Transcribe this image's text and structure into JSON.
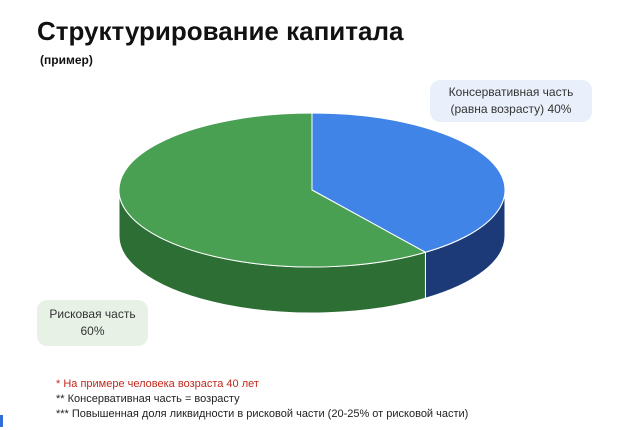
{
  "title": "Структурирование капитала",
  "subtitle": "(пример)",
  "chart_data": {
    "type": "pie",
    "style": "3d",
    "slices": [
      {
        "label": "Консервативная часть (равна возрасту)",
        "value": 40,
        "color": "#3f84e6",
        "side_color": "#1c3a78"
      },
      {
        "label": "Рисковая часть",
        "value": 60,
        "color": "#4aa052",
        "side_color": "#2c6e34"
      }
    ]
  },
  "callouts": {
    "conservative": [
      "Консервативная часть",
      "(равна возрасту) 40%"
    ],
    "risky": [
      "Рисковая часть",
      "60%"
    ]
  },
  "notes": [
    "* На примере человека возраста 40 лет",
    "** Консервативная часть = возрасту",
    "*** Повышенная доля ликвидности в рисковой части (20-25% от рисковой части)"
  ]
}
